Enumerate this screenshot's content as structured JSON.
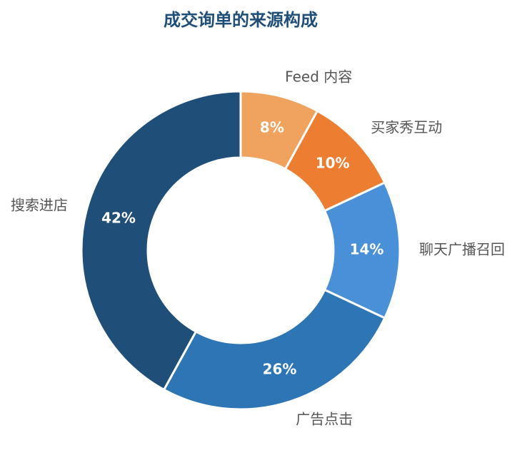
{
  "chart_data": {
    "type": "donut",
    "title": "成交询单的来源构成",
    "categories": [
      "Feed 内容",
      "买家秀互动",
      "聊天广播召回",
      "广告点击",
      "搜索进店"
    ],
    "values": [
      8,
      10,
      14,
      26,
      42
    ],
    "value_labels": [
      "8%",
      "10%",
      "14%",
      "26%",
      "42%"
    ],
    "colors": [
      "#f0a35e",
      "#ed7d31",
      "#4a90d9",
      "#2e75b6",
      "#1f4e79"
    ]
  }
}
